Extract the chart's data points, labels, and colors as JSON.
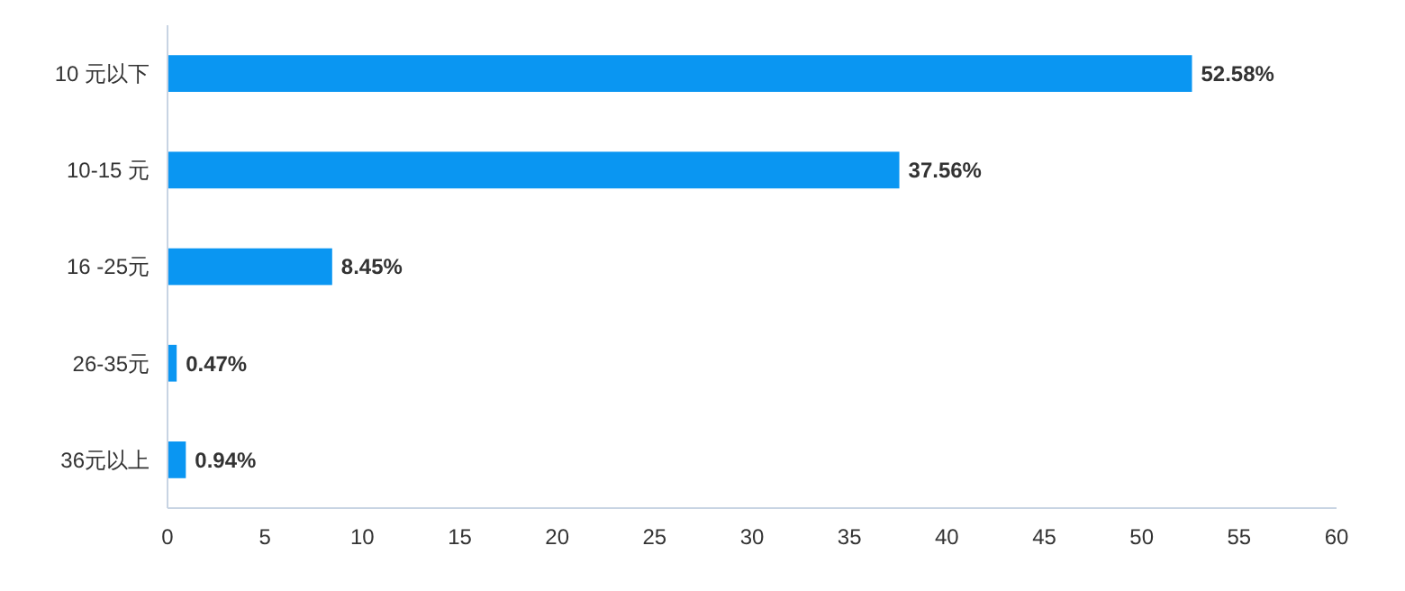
{
  "chart_data": {
    "type": "bar",
    "orientation": "horizontal",
    "categories": [
      "10 元以下",
      "10-15 元",
      "16 -25元",
      "26-35元",
      "36元以上"
    ],
    "values": [
      52.58,
      37.56,
      8.45,
      0.47,
      0.94
    ],
    "value_labels": [
      "52.58%",
      "37.56%",
      "8.45%",
      "0.47%",
      "0.94%"
    ],
    "color": "#0a96f2",
    "xlim": [
      0,
      60
    ],
    "xticks": [
      0,
      5,
      10,
      15,
      20,
      25,
      30,
      35,
      40,
      45,
      50,
      55,
      60
    ],
    "grid": false
  }
}
